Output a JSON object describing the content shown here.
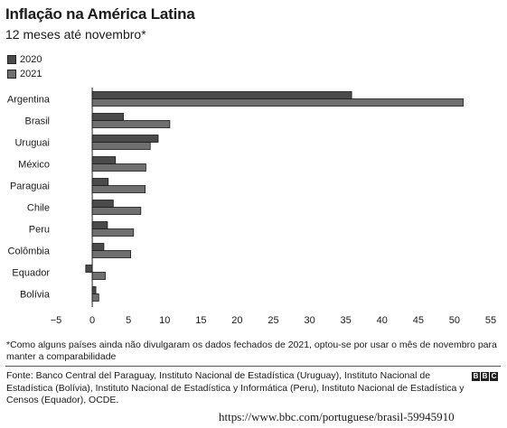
{
  "chart_data": {
    "type": "bar",
    "orientation": "horizontal",
    "title": "Inflação na América Latina",
    "subtitle": "12 meses até novembro*",
    "categories": [
      "Argentina",
      "Brasil",
      "Uruguai",
      "México",
      "Paraguai",
      "Chile",
      "Peru",
      "Colômbia",
      "Equador",
      "Bolívia"
    ],
    "series": [
      {
        "name": "2020",
        "color": "#4a4a4a",
        "values": [
          35.8,
          4.3,
          9.1,
          3.2,
          2.2,
          2.9,
          2.1,
          1.6,
          -0.9,
          0.5
        ]
      },
      {
        "name": "2021",
        "color": "#707070",
        "values": [
          51.2,
          10.7,
          8.0,
          7.4,
          7.3,
          6.7,
          5.7,
          5.3,
          1.8,
          0.9
        ]
      }
    ],
    "xlim": [
      -5,
      55
    ],
    "xticks": [
      "−5",
      "0",
      "5",
      "10",
      "15",
      "20",
      "25",
      "30",
      "35",
      "40",
      "45",
      "50",
      "55"
    ],
    "grid": false,
    "legend_position": "top-left"
  },
  "note": "*Como alguns países ainda não divulgaram os dados fechados de 2021, optou-se por usar o mês de novembro para manter a comparabilidade",
  "sources": "Fonte: Banco Central del Paraguay, Instituto Nacional de Estadística (Uruguay), Instituto Nacional de Estadística (Bolívia), Instituto Nacional de Estadística y Informática (Peru), Instituto Nacional de Estadística y Censos (Equador), OCDE.",
  "logo": [
    "B",
    "B",
    "C"
  ],
  "url": "https://www.bbc.com/portuguese/brasil-59945910"
}
